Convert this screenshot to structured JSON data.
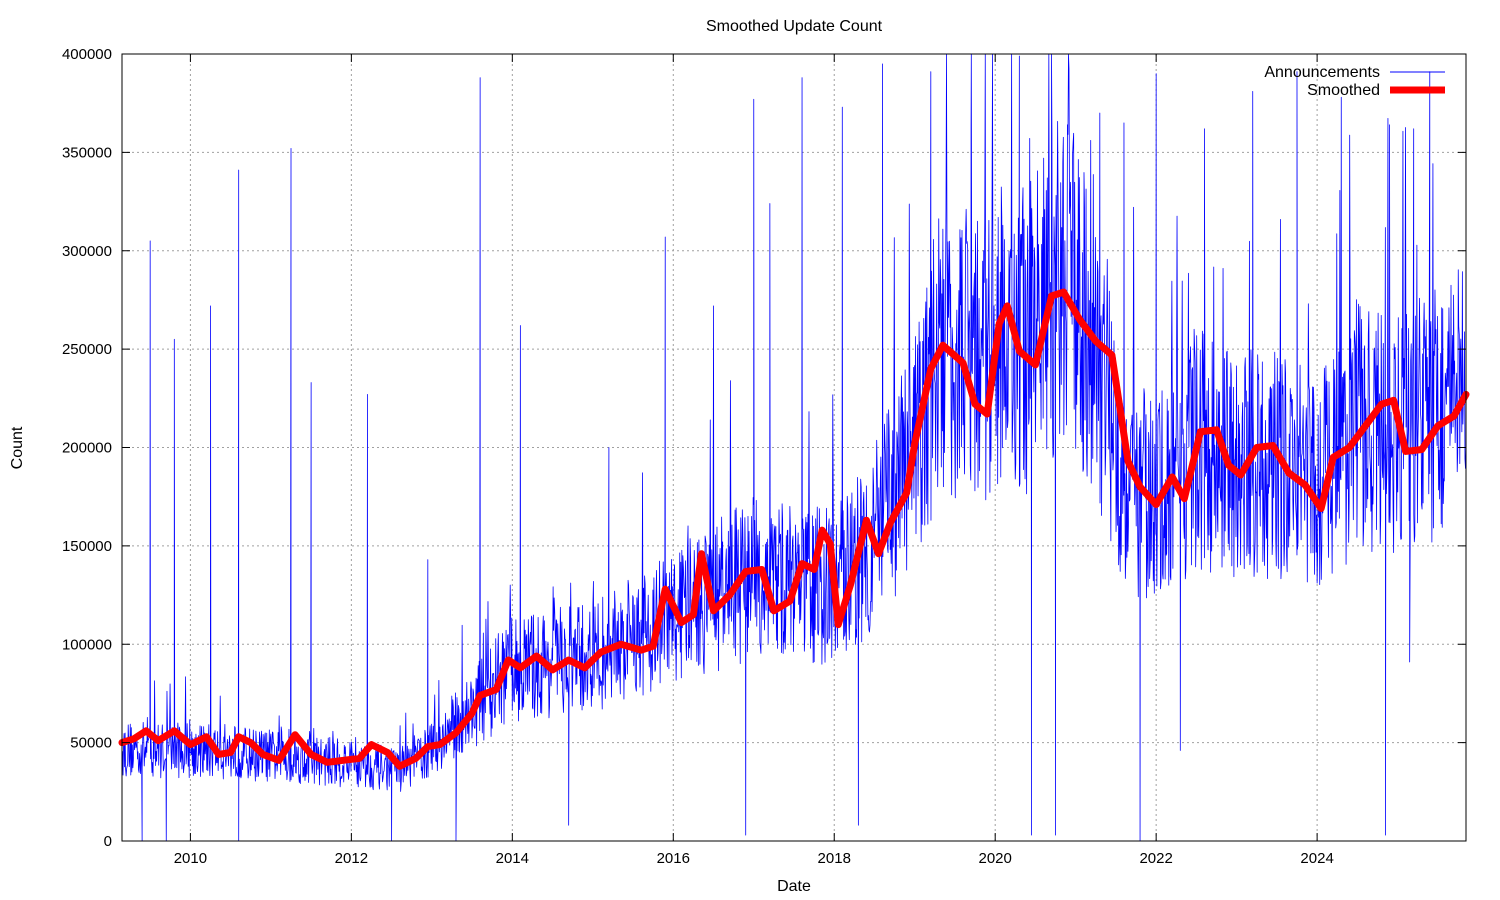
{
  "chart_data": {
    "type": "line",
    "title": "Smoothed Update Count",
    "xlabel": "Date",
    "ylabel": "Count",
    "xlim": [
      2009.15,
      2025.85
    ],
    "ylim": [
      0,
      400000
    ],
    "x_ticks": [
      2010,
      2012,
      2014,
      2016,
      2018,
      2020,
      2022,
      2024
    ],
    "y_ticks": [
      0,
      50000,
      100000,
      150000,
      200000,
      250000,
      300000,
      350000,
      400000
    ],
    "grid": true,
    "legend_position": "top-right",
    "colors": {
      "announcements": "#0000ff",
      "smoothed": "#ff0000"
    },
    "series": [
      {
        "name": "Announcements",
        "style": "thin-line",
        "baseline": [
          [
            2009.15,
            45000
          ],
          [
            2010.0,
            45000
          ],
          [
            2011.0,
            42000
          ],
          [
            2012.0,
            38000
          ],
          [
            2012.6,
            35000
          ],
          [
            2013.0,
            45000
          ],
          [
            2013.5,
            65000
          ],
          [
            2014.0,
            85000
          ],
          [
            2015.0,
            90000
          ],
          [
            2016.0,
            110000
          ],
          [
            2016.5,
            120000
          ],
          [
            2017.0,
            130000
          ],
          [
            2018.0,
            125000
          ],
          [
            2018.5,
            150000
          ],
          [
            2019.0,
            190000
          ],
          [
            2019.3,
            240000
          ],
          [
            2020.0,
            240000
          ],
          [
            2020.5,
            250000
          ],
          [
            2020.8,
            275000
          ],
          [
            2021.2,
            255000
          ],
          [
            2021.6,
            180000
          ],
          [
            2022.0,
            165000
          ],
          [
            2022.5,
            195000
          ],
          [
            2023.0,
            185000
          ],
          [
            2023.5,
            185000
          ],
          [
            2024.0,
            175000
          ],
          [
            2024.5,
            205000
          ],
          [
            2025.0,
            200000
          ],
          [
            2025.85,
            220000
          ]
        ],
        "spikes": [
          [
            2009.5,
            305000
          ],
          [
            2009.8,
            255000
          ],
          [
            2010.25,
            272000
          ],
          [
            2010.6,
            341000
          ],
          [
            2011.25,
            352000
          ],
          [
            2011.5,
            233000
          ],
          [
            2012.2,
            227000
          ],
          [
            2012.95,
            143000
          ],
          [
            2013.6,
            388000
          ],
          [
            2014.1,
            262000
          ],
          [
            2015.2,
            200000
          ],
          [
            2015.9,
            307000
          ],
          [
            2016.5,
            272000
          ],
          [
            2017.0,
            377000
          ],
          [
            2017.2,
            324000
          ],
          [
            2017.6,
            388000
          ],
          [
            2018.1,
            373000
          ],
          [
            2018.6,
            395000
          ],
          [
            2019.2,
            391000
          ],
          [
            2019.7,
            363000
          ],
          [
            2020.3,
            399000
          ],
          [
            2020.7,
            400000
          ],
          [
            2021.3,
            370000
          ],
          [
            2021.6,
            365000
          ],
          [
            2022.0,
            390000
          ],
          [
            2022.6,
            362000
          ],
          [
            2023.2,
            381000
          ],
          [
            2023.75,
            391000
          ],
          [
            2024.3,
            378000
          ],
          [
            2024.9,
            364000
          ],
          [
            2025.2,
            362000
          ],
          [
            2025.4,
            391000
          ]
        ],
        "dips": [
          [
            2009.4,
            0
          ],
          [
            2009.7,
            0
          ],
          [
            2010.6,
            0
          ],
          [
            2012.5,
            0
          ],
          [
            2013.3,
            0
          ],
          [
            2014.7,
            8000
          ],
          [
            2016.9,
            3000
          ],
          [
            2018.3,
            8000
          ],
          [
            2020.45,
            3000
          ],
          [
            2020.75,
            3000
          ],
          [
            2021.8,
            0
          ],
          [
            2022.3,
            46000
          ],
          [
            2024.85,
            3000
          ],
          [
            2025.15,
            91000
          ]
        ]
      },
      {
        "name": "Smoothed",
        "style": "thick-line",
        "points": [
          [
            2009.15,
            50000
          ],
          [
            2009.3,
            52000
          ],
          [
            2009.45,
            56000
          ],
          [
            2009.6,
            51000
          ],
          [
            2009.8,
            56000
          ],
          [
            2010.0,
            49000
          ],
          [
            2010.2,
            53000
          ],
          [
            2010.35,
            44000
          ],
          [
            2010.5,
            45000
          ],
          [
            2010.6,
            53000
          ],
          [
            2010.75,
            50000
          ],
          [
            2010.9,
            44000
          ],
          [
            2011.1,
            41000
          ],
          [
            2011.3,
            54000
          ],
          [
            2011.5,
            44000
          ],
          [
            2011.7,
            40000
          ],
          [
            2011.9,
            41000
          ],
          [
            2012.1,
            42000
          ],
          [
            2012.25,
            49000
          ],
          [
            2012.45,
            45000
          ],
          [
            2012.6,
            38000
          ],
          [
            2012.8,
            42000
          ],
          [
            2012.95,
            48000
          ],
          [
            2013.1,
            49000
          ],
          [
            2013.3,
            55000
          ],
          [
            2013.5,
            65000
          ],
          [
            2013.6,
            74000
          ],
          [
            2013.8,
            77000
          ],
          [
            2013.95,
            92000
          ],
          [
            2014.1,
            88000
          ],
          [
            2014.3,
            94000
          ],
          [
            2014.5,
            87000
          ],
          [
            2014.7,
            92000
          ],
          [
            2014.9,
            88000
          ],
          [
            2015.1,
            96000
          ],
          [
            2015.35,
            100000
          ],
          [
            2015.6,
            97000
          ],
          [
            2015.75,
            99000
          ],
          [
            2015.9,
            128000
          ],
          [
            2016.1,
            111000
          ],
          [
            2016.25,
            115000
          ],
          [
            2016.35,
            146000
          ],
          [
            2016.5,
            117000
          ],
          [
            2016.7,
            125000
          ],
          [
            2016.9,
            137000
          ],
          [
            2017.1,
            138000
          ],
          [
            2017.25,
            117000
          ],
          [
            2017.45,
            122000
          ],
          [
            2017.6,
            141000
          ],
          [
            2017.75,
            138000
          ],
          [
            2017.85,
            158000
          ],
          [
            2017.95,
            151000
          ],
          [
            2018.05,
            110000
          ],
          [
            2018.2,
            130000
          ],
          [
            2018.4,
            163000
          ],
          [
            2018.55,
            146000
          ],
          [
            2018.7,
            162000
          ],
          [
            2018.9,
            177000
          ],
          [
            2019.0,
            202000
          ],
          [
            2019.2,
            240000
          ],
          [
            2019.35,
            252000
          ],
          [
            2019.6,
            243000
          ],
          [
            2019.75,
            222000
          ],
          [
            2019.9,
            217000
          ],
          [
            2020.05,
            263000
          ],
          [
            2020.15,
            272000
          ],
          [
            2020.3,
            249000
          ],
          [
            2020.5,
            242000
          ],
          [
            2020.7,
            277000
          ],
          [
            2020.85,
            279000
          ],
          [
            2021.05,
            265000
          ],
          [
            2021.25,
            254000
          ],
          [
            2021.45,
            247000
          ],
          [
            2021.65,
            193000
          ],
          [
            2021.8,
            180000
          ],
          [
            2022.0,
            171000
          ],
          [
            2022.2,
            185000
          ],
          [
            2022.35,
            174000
          ],
          [
            2022.55,
            208000
          ],
          [
            2022.75,
            209000
          ],
          [
            2022.9,
            191000
          ],
          [
            2023.05,
            186000
          ],
          [
            2023.25,
            200000
          ],
          [
            2023.45,
            201000
          ],
          [
            2023.65,
            187000
          ],
          [
            2023.85,
            181000
          ],
          [
            2024.05,
            169000
          ],
          [
            2024.2,
            195000
          ],
          [
            2024.4,
            200000
          ],
          [
            2024.6,
            211000
          ],
          [
            2024.8,
            222000
          ],
          [
            2024.95,
            224000
          ],
          [
            2025.1,
            198000
          ],
          [
            2025.3,
            199000
          ],
          [
            2025.5,
            211000
          ],
          [
            2025.7,
            216000
          ],
          [
            2025.85,
            227000
          ]
        ]
      }
    ]
  }
}
